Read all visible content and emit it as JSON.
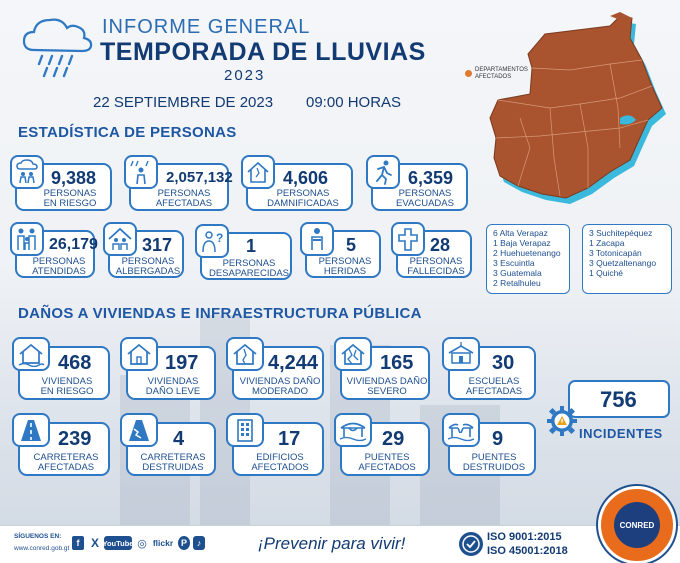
{
  "header": {
    "title_line1": "INFORME GENERAL",
    "title_line2": "TEMPORADA DE LLUVIAS",
    "year": "2023",
    "date": "22 SEPTIEMBRE DE 2023",
    "time": "09:00 HORAS"
  },
  "map": {
    "legend_line1": "DEPARTAMENTOS",
    "legend_line2": "AFECTADOS",
    "fill_color": "#a9532f",
    "water_color": "#35b7d8"
  },
  "persons_section": {
    "title": "ESTADÍSTICA DE PERSONAS",
    "stats": [
      {
        "value": "9,388",
        "label1": "PERSONAS",
        "label2": "EN RIESGO",
        "icon": "rain-people-icon"
      },
      {
        "value": "2,057,132",
        "label1": "PERSONAS",
        "label2": "AFECTADAS",
        "icon": "rain-person-icon"
      },
      {
        "value": "4,606",
        "label1": "PERSONAS",
        "label2": "DAMNIFICADAS",
        "icon": "damaged-house-icon"
      },
      {
        "value": "6,359",
        "label1": "PERSONAS",
        "label2": "EVACUADAS",
        "icon": "running-person-icon"
      },
      {
        "value": "26,179",
        "label1": "PERSONAS",
        "label2": "ATENDIDAS",
        "icon": "family-icon"
      },
      {
        "value": "317",
        "label1": "PERSONAS",
        "label2": "ALBERGADAS",
        "icon": "shelter-icon"
      },
      {
        "value": "1",
        "label1": "PERSONAS",
        "label2": "DESAPARECIDAS",
        "icon": "missing-person-icon"
      },
      {
        "value": "5",
        "label1": "PERSONAS",
        "label2": "HERIDAS",
        "icon": "injured-person-icon"
      },
      {
        "value": "28",
        "label1": "PERSONAS",
        "label2": "FALLECIDAS",
        "icon": "cross-icon"
      }
    ]
  },
  "fatalities_by_dept": {
    "col1": [
      "6 Alta Verapaz",
      "1 Baja Verapaz",
      "2 Huehuetenango",
      "3 Escuintla",
      "3 Guatemala",
      "2 Retalhuleu"
    ],
    "col2": [
      "3 Suchitepéquez",
      "1 Zacapa",
      "3 Totonicapán",
      "3 Quetzaltenango",
      "1 Quiché"
    ]
  },
  "infra_section": {
    "title": "DAÑOS A VIVIENDAS E INFRAESTRUCTURA PÚBLICA",
    "stats": [
      {
        "value": "468",
        "label1": "VIVIENDAS",
        "label2": "EN RIESGO",
        "icon": "house-risk-icon"
      },
      {
        "value": "197",
        "label1": "VIVIENDAS",
        "label2": "DAÑO LEVE",
        "icon": "house-icon"
      },
      {
        "value": "4,244",
        "label1": "VIVIENDAS DAÑO",
        "label2": "MODERADO",
        "icon": "house-moderate-icon"
      },
      {
        "value": "165",
        "label1": "VIVIENDAS DAÑO",
        "label2": "SEVERO",
        "icon": "house-severe-icon"
      },
      {
        "value": "30",
        "label1": "ESCUELAS",
        "label2": "AFECTADAS",
        "icon": "school-icon"
      },
      {
        "value": "239",
        "label1": "CARRETERAS",
        "label2": "AFECTADAS",
        "icon": "road-icon"
      },
      {
        "value": "4",
        "label1": "CARRETERAS",
        "label2": "DESTRUIDAS",
        "icon": "road-destroyed-icon"
      },
      {
        "value": "17",
        "label1": "EDIFICIOS",
        "label2": "AFECTADOS",
        "icon": "building-icon"
      },
      {
        "value": "29",
        "label1": "PUENTES",
        "label2": "AFECTADOS",
        "icon": "bridge-icon"
      },
      {
        "value": "9",
        "label1": "PUENTES",
        "label2": "DESTRUIDOS",
        "icon": "bridge-destroyed-icon"
      }
    ]
  },
  "incidents": {
    "value": "756",
    "label": "INCIDENTES"
  },
  "footer": {
    "follow_label": "SÍGUENOS EN:",
    "website": "www.conred.gob.gt",
    "social": [
      "f",
      "X",
      "YouTube",
      "◎",
      "flickr",
      "P",
      "♪"
    ],
    "slogan": "¡Prevenir para vivir!",
    "iso1": "ISO  9001:2015",
    "iso2": "ISO  45001:2018",
    "logo_text": "CONRED"
  }
}
